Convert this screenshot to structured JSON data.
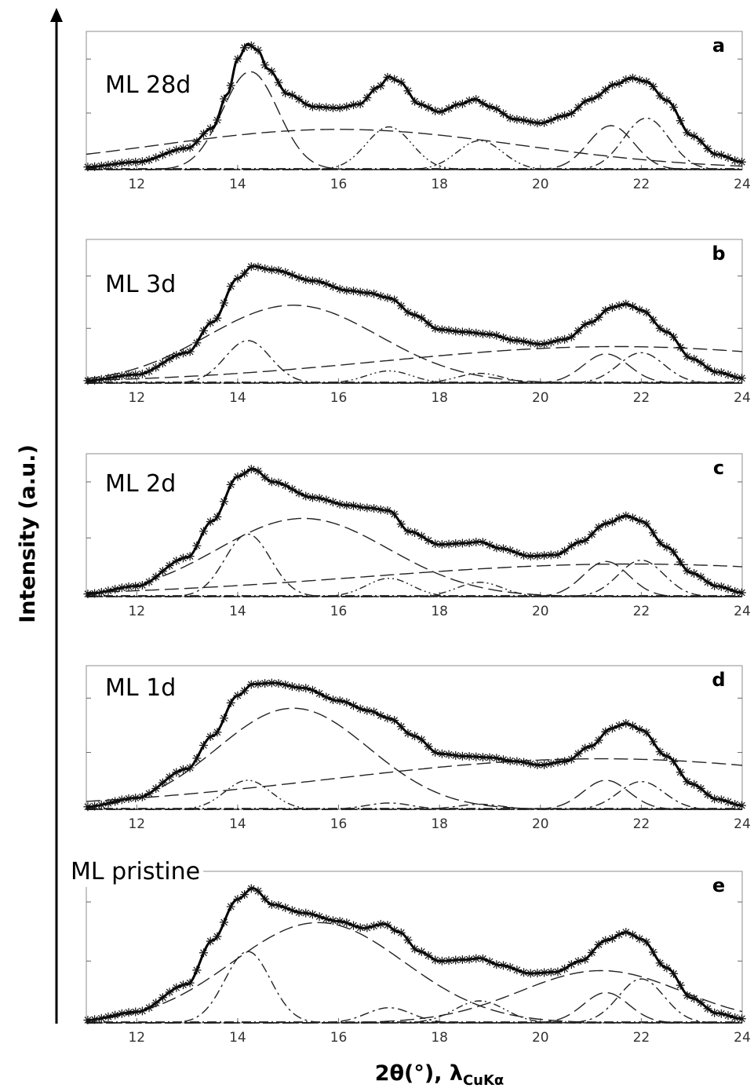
{
  "figure": {
    "y_axis_title": "Intensity (a.u.)",
    "x_axis_title_main": "2θ(°), λ",
    "x_axis_title_sub": "CuKα"
  },
  "chart_data": [
    {
      "type": "line",
      "panel_letter": "a",
      "sample_label": "ML 28d",
      "x_ticks": [
        12,
        14,
        16,
        18,
        20,
        22,
        24
      ],
      "xlim": [
        11,
        24
      ],
      "grid": false,
      "legend": "none",
      "measured_curve": [
        [
          11,
          0.02
        ],
        [
          12,
          0.06
        ],
        [
          13,
          0.17
        ],
        [
          13.5,
          0.33
        ],
        [
          13.8,
          0.6
        ],
        [
          14.0,
          0.88
        ],
        [
          14.2,
          1.0
        ],
        [
          14.4,
          0.95
        ],
        [
          14.6,
          0.8
        ],
        [
          15.0,
          0.6
        ],
        [
          15.5,
          0.5
        ],
        [
          16.0,
          0.49
        ],
        [
          16.4,
          0.52
        ],
        [
          16.8,
          0.66
        ],
        [
          17.0,
          0.74
        ],
        [
          17.2,
          0.7
        ],
        [
          17.6,
          0.52
        ],
        [
          18.0,
          0.46
        ],
        [
          18.4,
          0.52
        ],
        [
          18.7,
          0.56
        ],
        [
          19.0,
          0.5
        ],
        [
          19.5,
          0.4
        ],
        [
          20.0,
          0.37
        ],
        [
          20.5,
          0.43
        ],
        [
          21.0,
          0.56
        ],
        [
          21.5,
          0.68
        ],
        [
          21.8,
          0.73
        ],
        [
          22.1,
          0.7
        ],
        [
          22.5,
          0.55
        ],
        [
          23.0,
          0.27
        ],
        [
          23.5,
          0.12
        ],
        [
          24,
          0.06
        ]
      ],
      "fit_components": [
        {
          "shape": "long-dash",
          "center": 14.25,
          "height": 0.78,
          "width": 0.55
        },
        {
          "shape": "long-dash",
          "center": 16.0,
          "height": 0.32,
          "width": 3.6
        },
        {
          "shape": "dash-dot-dot",
          "center": 17.0,
          "height": 0.34,
          "width": 0.45
        },
        {
          "shape": "dash-dot-dot",
          "center": 18.8,
          "height": 0.23,
          "width": 0.45
        },
        {
          "shape": "long-dash",
          "center": 21.4,
          "height": 0.35,
          "width": 0.45
        },
        {
          "shape": "dash-dot",
          "center": 22.1,
          "height": 0.41,
          "width": 0.45
        }
      ]
    },
    {
      "type": "line",
      "panel_letter": "b",
      "sample_label": "ML 3d",
      "x_ticks": [
        12,
        14,
        16,
        18,
        20,
        22,
        24
      ],
      "xlim": [
        11,
        24
      ],
      "grid": false,
      "legend": "none",
      "measured_curve": [
        [
          11,
          0.02
        ],
        [
          12,
          0.07
        ],
        [
          13,
          0.25
        ],
        [
          13.5,
          0.5
        ],
        [
          14.0,
          0.86
        ],
        [
          14.3,
          0.96
        ],
        [
          14.7,
          0.93
        ],
        [
          15.5,
          0.84
        ],
        [
          16.2,
          0.76
        ],
        [
          16.6,
          0.74
        ],
        [
          17.0,
          0.7
        ],
        [
          17.5,
          0.56
        ],
        [
          18.0,
          0.44
        ],
        [
          18.5,
          0.42
        ],
        [
          19.0,
          0.4
        ],
        [
          19.5,
          0.35
        ],
        [
          20.0,
          0.32
        ],
        [
          20.5,
          0.36
        ],
        [
          21.0,
          0.5
        ],
        [
          21.4,
          0.62
        ],
        [
          21.7,
          0.65
        ],
        [
          22.0,
          0.6
        ],
        [
          22.5,
          0.42
        ],
        [
          23.0,
          0.2
        ],
        [
          23.5,
          0.09
        ],
        [
          24,
          0.04
        ]
      ],
      "fit_components": [
        {
          "shape": "long-dash",
          "center": 15.1,
          "height": 0.64,
          "width": 1.7
        },
        {
          "shape": "dash-dot",
          "center": 14.2,
          "height": 0.35,
          "width": 0.45
        },
        {
          "shape": "dash-dot-dot",
          "center": 17.0,
          "height": 0.1,
          "width": 0.45
        },
        {
          "shape": "dash-dot-dot",
          "center": 18.8,
          "height": 0.08,
          "width": 0.45
        },
        {
          "shape": "long-dash",
          "center": 21.3,
          "height": 0.24,
          "width": 0.45
        },
        {
          "shape": "dash-dot",
          "center": 22.0,
          "height": 0.25,
          "width": 0.45
        },
        {
          "shape": "long-dash",
          "center": 21.5,
          "height": 0.3,
          "width": 4.6
        }
      ]
    },
    {
      "type": "line",
      "panel_letter": "c",
      "sample_label": "ML 2d",
      "x_ticks": [
        12,
        14,
        16,
        18,
        20,
        22,
        24
      ],
      "xlim": [
        11,
        24
      ],
      "grid": false,
      "legend": "none",
      "measured_curve": [
        [
          11,
          0.02
        ],
        [
          12,
          0.08
        ],
        [
          13,
          0.3
        ],
        [
          13.5,
          0.58
        ],
        [
          14.0,
          0.92
        ],
        [
          14.3,
          0.98
        ],
        [
          14.7,
          0.88
        ],
        [
          15.5,
          0.76
        ],
        [
          16.2,
          0.7
        ],
        [
          16.6,
          0.68
        ],
        [
          17.0,
          0.66
        ],
        [
          17.4,
          0.5
        ],
        [
          18.0,
          0.4
        ],
        [
          18.5,
          0.41
        ],
        [
          18.8,
          0.42
        ],
        [
          19.2,
          0.37
        ],
        [
          19.8,
          0.31
        ],
        [
          20.3,
          0.32
        ],
        [
          20.8,
          0.42
        ],
        [
          21.3,
          0.56
        ],
        [
          21.7,
          0.62
        ],
        [
          22.0,
          0.58
        ],
        [
          22.5,
          0.38
        ],
        [
          23.0,
          0.18
        ],
        [
          23.5,
          0.08
        ],
        [
          24,
          0.03
        ]
      ],
      "fit_components": [
        {
          "shape": "long-dash",
          "center": 15.3,
          "height": 0.6,
          "width": 1.7
        },
        {
          "shape": "dash-dot",
          "center": 14.2,
          "height": 0.48,
          "width": 0.45
        },
        {
          "shape": "dash-dot-dot",
          "center": 17.0,
          "height": 0.14,
          "width": 0.45
        },
        {
          "shape": "dash-dot-dot",
          "center": 18.8,
          "height": 0.11,
          "width": 0.45
        },
        {
          "shape": "long-dash",
          "center": 21.3,
          "height": 0.27,
          "width": 0.45
        },
        {
          "shape": "dash-dot",
          "center": 22.0,
          "height": 0.28,
          "width": 0.45
        },
        {
          "shape": "long-dash",
          "center": 21.8,
          "height": 0.25,
          "width": 5.3
        }
      ]
    },
    {
      "type": "line",
      "panel_letter": "d",
      "sample_label": "ML 1d",
      "x_ticks": [
        12,
        14,
        16,
        18,
        20,
        22,
        24
      ],
      "xlim": [
        11,
        24
      ],
      "grid": false,
      "legend": "none",
      "measured_curve": [
        [
          11,
          0.02
        ],
        [
          12,
          0.09
        ],
        [
          13,
          0.32
        ],
        [
          13.5,
          0.58
        ],
        [
          14.0,
          0.9
        ],
        [
          14.3,
          0.99
        ],
        [
          14.7,
          1.0
        ],
        [
          15.3,
          0.96
        ],
        [
          16.0,
          0.86
        ],
        [
          16.6,
          0.78
        ],
        [
          17.0,
          0.72
        ],
        [
          17.5,
          0.58
        ],
        [
          18.0,
          0.44
        ],
        [
          18.5,
          0.42
        ],
        [
          19.0,
          0.41
        ],
        [
          19.5,
          0.38
        ],
        [
          20.0,
          0.35
        ],
        [
          20.5,
          0.38
        ],
        [
          21.0,
          0.5
        ],
        [
          21.4,
          0.64
        ],
        [
          21.7,
          0.68
        ],
        [
          22.0,
          0.63
        ],
        [
          22.5,
          0.42
        ],
        [
          23.0,
          0.2
        ],
        [
          23.5,
          0.08
        ],
        [
          24,
          0.03
        ]
      ],
      "fit_components": [
        {
          "shape": "long-dash",
          "center": 15.1,
          "height": 0.8,
          "width": 1.5
        },
        {
          "shape": "dash-dot-dot",
          "center": 14.2,
          "height": 0.23,
          "width": 0.45
        },
        {
          "shape": "dash-dot",
          "center": 17.0,
          "height": 0.05,
          "width": 0.45
        },
        {
          "shape": "dash-dot",
          "center": 18.8,
          "height": 0.04,
          "width": 0.45
        },
        {
          "shape": "long-dash",
          "center": 21.3,
          "height": 0.23,
          "width": 0.45
        },
        {
          "shape": "dash-dot",
          "center": 22.0,
          "height": 0.22,
          "width": 0.45
        },
        {
          "shape": "long-dash",
          "center": 21.2,
          "height": 0.4,
          "width": 5.3
        }
      ]
    },
    {
      "type": "line",
      "panel_letter": "e",
      "sample_label": "ML pristine",
      "x_ticks": [
        12,
        14,
        16,
        18,
        20,
        22,
        24
      ],
      "xlim": [
        11,
        24
      ],
      "grid": false,
      "legend": "none",
      "measured_curve": [
        [
          11,
          0.02
        ],
        [
          12,
          0.08
        ],
        [
          13,
          0.28
        ],
        [
          13.5,
          0.6
        ],
        [
          14.0,
          0.9
        ],
        [
          14.3,
          0.98
        ],
        [
          14.7,
          0.86
        ],
        [
          15.3,
          0.8
        ],
        [
          16.0,
          0.74
        ],
        [
          16.5,
          0.69
        ],
        [
          16.9,
          0.72
        ],
        [
          17.2,
          0.66
        ],
        [
          17.6,
          0.52
        ],
        [
          18.0,
          0.45
        ],
        [
          18.5,
          0.46
        ],
        [
          18.8,
          0.47
        ],
        [
          19.2,
          0.42
        ],
        [
          19.8,
          0.36
        ],
        [
          20.3,
          0.37
        ],
        [
          20.8,
          0.45
        ],
        [
          21.3,
          0.6
        ],
        [
          21.7,
          0.66
        ],
        [
          22.0,
          0.61
        ],
        [
          22.5,
          0.4
        ],
        [
          23.0,
          0.18
        ],
        [
          23.5,
          0.07
        ],
        [
          24,
          0.03
        ]
      ],
      "fit_components": [
        {
          "shape": "long-dash",
          "center": 15.6,
          "height": 0.73,
          "width": 1.7
        },
        {
          "shape": "dash-dot",
          "center": 14.2,
          "height": 0.52,
          "width": 0.45
        },
        {
          "shape": "dash-dot",
          "center": 17.0,
          "height": 0.11,
          "width": 0.45
        },
        {
          "shape": "dash-dot-dot",
          "center": 18.8,
          "height": 0.16,
          "width": 0.5
        },
        {
          "shape": "long-dash",
          "center": 21.3,
          "height": 0.22,
          "width": 0.45
        },
        {
          "shape": "dash-dot",
          "center": 22.0,
          "height": 0.32,
          "width": 0.45
        },
        {
          "shape": "long-dash",
          "center": 21.2,
          "height": 0.38,
          "width": 1.6
        }
      ]
    }
  ]
}
